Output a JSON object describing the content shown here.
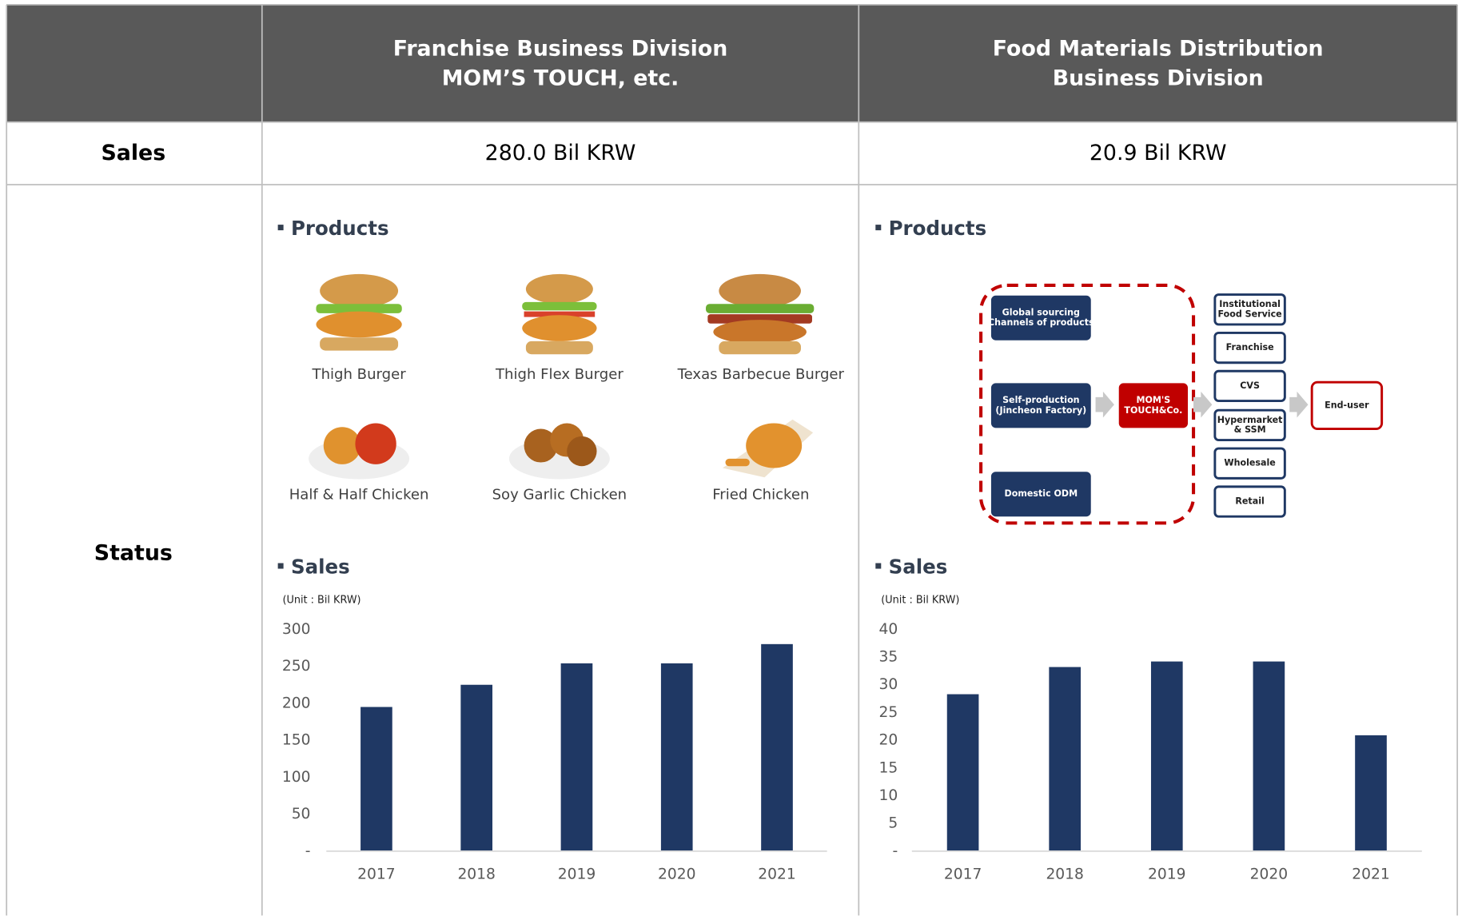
{
  "header": {
    "columns": [
      [
        "Franchise Business Division",
        "MOM’S TOUCH, etc."
      ],
      [
        "Food Materials Distribution",
        "Business Division"
      ]
    ]
  },
  "sales_row": {
    "label": "Sales",
    "values": [
      "280.0 Bil KRW",
      "20.9 Bil KRW"
    ]
  },
  "status_row": {
    "label": "Status"
  },
  "franchise": {
    "products_title": "Products",
    "products": [
      "Thigh Burger",
      "Thigh Flex Burger",
      "Texas Barbecue Burger",
      "Half & Half Chicken",
      "Soy Garlic Chicken",
      "Fried Chicken"
    ]
  },
  "distribution": {
    "products_title": "Products",
    "flow": {
      "sources": [
        [
          "Global sourcing",
          "Channels of products"
        ],
        [
          "Self-production",
          "(Jincheon Factory)"
        ],
        [
          "Domestic ODM"
        ]
      ],
      "hub": [
        "MOM'S",
        "TOUCH&Co."
      ],
      "channels": [
        [
          "Institutional",
          "Food Service"
        ],
        [
          "Franchise"
        ],
        [
          "CVS"
        ],
        [
          "Hypermarket",
          "& SSM"
        ],
        [
          "Wholesale"
        ],
        [
          "Retail"
        ]
      ],
      "end": [
        "End-user"
      ]
    }
  },
  "chart_data": [
    {
      "type": "bar",
      "title": "Sales",
      "subtitle": "(Unit : Bil KRW)",
      "color": "#1f3864",
      "categories": [
        "2017",
        "2018",
        "2019",
        "2020",
        "2021"
      ],
      "values": [
        195,
        225,
        254,
        254,
        280
      ],
      "ylim": [
        0,
        300
      ],
      "yticks": [
        {
          "value": 0,
          "label": "-"
        },
        50,
        100,
        150,
        200,
        250,
        300
      ]
    },
    {
      "type": "bar",
      "title": "Sales",
      "subtitle": "(Unit : Bil KRW)",
      "color": "#1f3864",
      "categories": [
        "2017",
        "2018",
        "2019",
        "2020",
        "2021"
      ],
      "values": [
        28.3,
        33.2,
        34.2,
        34.2,
        20.9
      ],
      "ylim": [
        0,
        40
      ],
      "yticks": [
        {
          "value": 0,
          "label": "-"
        },
        5,
        10,
        15,
        20,
        25,
        30,
        35,
        40
      ]
    }
  ]
}
